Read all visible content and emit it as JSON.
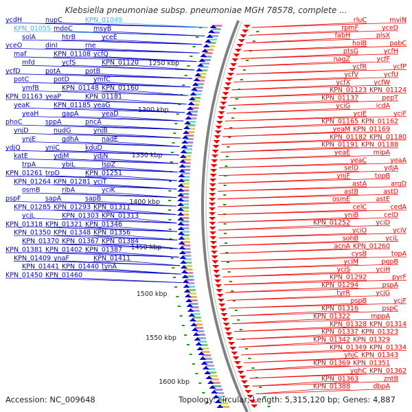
{
  "title": "Klebsiella pneumoniae subsp. pneumoniae MGH 78578, complete ...",
  "accession": "Accession: NC_009648",
  "summary": "Topology: circular; Length: 5,315,120 bp; Genes: 4,887",
  "colors": {
    "reverse_strand": "#0000cc",
    "forward_strand": "#ee0000",
    "highlight": "#33bbee",
    "backbone": "#808080",
    "ruler_tick": "#119911"
  },
  "ruler_marks": [
    "1250 kbp",
    "1300 kbp",
    "1350 kbp",
    "1400 kbp",
    "1450 kbp",
    "1500 kbp",
    "1550 kbp",
    "1600 kbp"
  ],
  "left_labels": [
    "ycdH",
    "nupC",
    "KPN_01049",
    "KPN_01055",
    "mdoC",
    "msyB",
    "solA",
    "htrB",
    "yceE",
    "yceO",
    "dinI",
    "rne",
    "maf",
    "KPN_01108",
    "ycfQ",
    "mfd",
    "ycfS",
    "KPN_01120",
    "ycfD",
    "potA",
    "potB",
    "potC",
    "potD",
    "ymfC",
    "ymfB",
    "KPN_01148",
    "KPN_01160",
    "KPN_01163",
    "yeaP",
    "KPN_01181",
    "yeaK",
    "KPN_01185",
    "yeaG",
    "yeaH",
    "gapA",
    "yeaD",
    "phoC",
    "sppA",
    "pncA",
    "ynjD",
    "nudG",
    "ynjB",
    "ynjE",
    "gdhA",
    "nadE",
    "ydjQ",
    "yniC",
    "kduD",
    "katE",
    "ydjM",
    "ydjN",
    "trpA",
    "ybiL",
    "lspZ",
    "KPN_01261",
    "trpD",
    "KPN_01251",
    "KPN_01264",
    "KPN_01281",
    "yciT",
    "osmB",
    "ribA",
    "yciK",
    "pspF",
    "sapA",
    "sapB",
    "KPN_01285",
    "KPN_01293",
    "KPN_01311",
    "ycjL",
    "KPN_01303",
    "KPN_01313",
    "KPN_01318",
    "KPN_01321",
    "KPN_01346",
    "KPN_01350",
    "KPN_01348",
    "KPN_01356",
    "KPN_01370",
    "KPN_01367",
    "KPN_01384",
    "KPN_01381",
    "KPN_01402",
    "KPN_01387",
    "KPN_01409",
    "ynaF",
    "KPN_01411",
    "KPN_01441",
    "KPN_01440",
    "tynA",
    "KPN_01450",
    "KPN_01460"
  ],
  "right_labels": [
    "mviN",
    "rluC",
    "yceD",
    "rpmF",
    "plsX",
    "fabH",
    "pabC",
    "holB",
    "ycfH",
    "ptsG",
    "ycfF",
    "nagZ",
    "ycfP",
    "ycfR",
    "ycfU",
    "ycfV",
    "ycfW",
    "ycfX",
    "KPN_01124",
    "KPN_01123",
    "pepT",
    "KPN_01137",
    "icdA",
    "yciG",
    "yciF",
    "yciE",
    "KPN_01162",
    "KPN_01165",
    "KPN_01169",
    "yeaM",
    "KPN_01180",
    "KPN_01182",
    "KPN_01188",
    "KPN_01191",
    "mipA",
    "yeaE",
    "yeaA",
    "yeaC",
    "ydjA",
    "selD",
    "topB",
    "ynjF",
    "argD",
    "astA",
    "astD",
    "astB",
    "astE",
    "osmE",
    "cedA",
    "celC",
    "celD",
    "yniB",
    "yciD",
    "KPN_01252",
    "yciV",
    "yciO",
    "yciL",
    "sohB",
    "KPN_01260",
    "acnA",
    "topA",
    "cysB",
    "pgpB",
    "yciM",
    "yciH",
    "yciS",
    "pyrF",
    "KPN_01292",
    "pspA",
    "KPN_01294",
    "ycjG",
    "tyrR",
    "ycjF",
    "pspB",
    "pspC",
    "KPN_01316",
    "mppA",
    "KPN_01322",
    "KPN_01314",
    "KPN_01328",
    "KPN_01323",
    "KPN_01337",
    "KPN_01329",
    "KPN_01342",
    "KPN_01334",
    "KPN_01349",
    "KPN_01343",
    "yhjC",
    "KPN_01351",
    "KPN_01369",
    "KPN_01362",
    "yqhC",
    "zntB",
    "KPN_01363",
    "dbpA",
    "KPN_01388"
  ],
  "highlighted": [
    "KPN_01049",
    "KPN_01055"
  ]
}
